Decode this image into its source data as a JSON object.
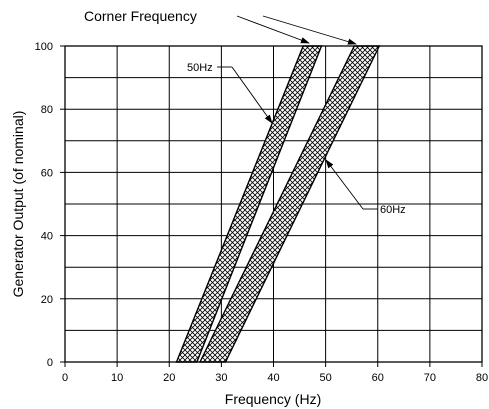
{
  "chart_data": {
    "type": "area",
    "title": "",
    "xlabel": "Frequency (Hz)",
    "ylabel": "Generator Output (of nominal)",
    "xlim": [
      0,
      80
    ],
    "ylim": [
      0,
      100
    ],
    "x_ticks": [
      "0",
      "10",
      "20",
      "30",
      "40",
      "50",
      "60",
      "70",
      "80"
    ],
    "y_ticks": [
      "0",
      "20",
      "40",
      "60",
      "80",
      "100"
    ],
    "grid": true,
    "bands": [
      {
        "name": "50Hz",
        "pattern": "crosshatch",
        "polygon": [
          [
            21.4,
            0
          ],
          [
            45.7,
            100
          ],
          [
            49.2,
            100
          ],
          [
            25.3,
            0
          ]
        ]
      },
      {
        "name": "60Hz",
        "pattern": "crosshatch",
        "polygon": [
          [
            25.9,
            0
          ],
          [
            55.5,
            100
          ],
          [
            60.3,
            100
          ],
          [
            30.8,
            0
          ]
        ]
      }
    ],
    "annotations": [
      {
        "text": "Corner Frequency",
        "arrows_to": [
          [
            46.8,
            100
          ],
          [
            57.5,
            100
          ]
        ]
      },
      {
        "text": "50Hz",
        "arrow_to": [
          40.0,
          75.0
        ]
      },
      {
        "text": "60Hz",
        "arrow_to": [
          50.0,
          64.0
        ]
      }
    ]
  }
}
